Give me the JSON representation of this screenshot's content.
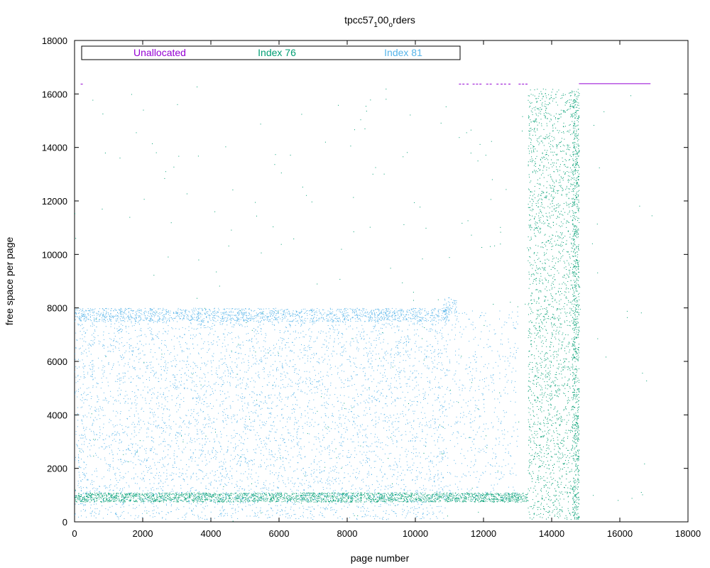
{
  "chart_data": {
    "type": "scatter",
    "title": {
      "main": "tpcc57",
      "sub1": "1",
      "mid": "00",
      "sub2": "o",
      "tail": "rders"
    },
    "xlabel": "page number",
    "ylabel": "free space per page",
    "xlim": [
      0,
      18000
    ],
    "ylim": [
      0,
      18000
    ],
    "x_ticks": [
      "0",
      "2000",
      "4000",
      "6000",
      "8000",
      "10000",
      "12000",
      "14000",
      "16000",
      "18000"
    ],
    "y_ticks": [
      "0",
      "2000",
      "4000",
      "6000",
      "8000",
      "10000",
      "12000",
      "14000",
      "16000",
      "18000"
    ],
    "grid": false,
    "legend_position": "top-left, horizontal",
    "series": [
      {
        "name": "Unallocated",
        "color": "#9400D3",
        "points": [
          [
            200,
            16384
          ],
          [
            11300,
            16384
          ],
          [
            11400,
            16384
          ],
          [
            11520,
            16384
          ],
          [
            11700,
            16384
          ],
          [
            11800,
            16384
          ],
          [
            11900,
            16384
          ],
          [
            12100,
            16384
          ],
          [
            12200,
            16384
          ],
          [
            12400,
            16384
          ],
          [
            12520,
            16384
          ],
          [
            12620,
            16384
          ],
          [
            12750,
            16384
          ],
          [
            13050,
            16384
          ],
          [
            13150,
            16384
          ],
          [
            13250,
            16384
          ]
        ],
        "segments": [
          [
            14800,
            16384,
            16900,
            16384
          ]
        ]
      },
      {
        "name": "Index 76",
        "color": "#009E73",
        "regions": [
          {
            "x": [
              0,
              13300
            ],
            "y": [
              750,
              1100
            ],
            "density": 2600
          },
          {
            "x": [
              13300,
              14800
            ],
            "y": [
              100,
              16200
            ],
            "density": 2400
          },
          {
            "x": [
              14600,
              14800
            ],
            "y": [
              100,
              16200
            ],
            "density": 700
          },
          {
            "x": [
              0,
              17000
            ],
            "y": [
              0,
              16300
            ],
            "density": 260
          }
        ]
      },
      {
        "name": "Index 81",
        "color": "#56B4E9",
        "regions": [
          {
            "x": [
              0,
              10900
            ],
            "y": [
              100,
              7900
            ],
            "density": 5200
          },
          {
            "x": [
              0,
              11000
            ],
            "y": [
              7500,
              8000
            ],
            "density": 1400
          },
          {
            "x": [
              10900,
              13000
            ],
            "y": [
              800,
              7900
            ],
            "density": 500
          },
          {
            "x": [
              10800,
              11200
            ],
            "y": [
              7800,
              8400
            ],
            "density": 60
          }
        ]
      }
    ]
  }
}
